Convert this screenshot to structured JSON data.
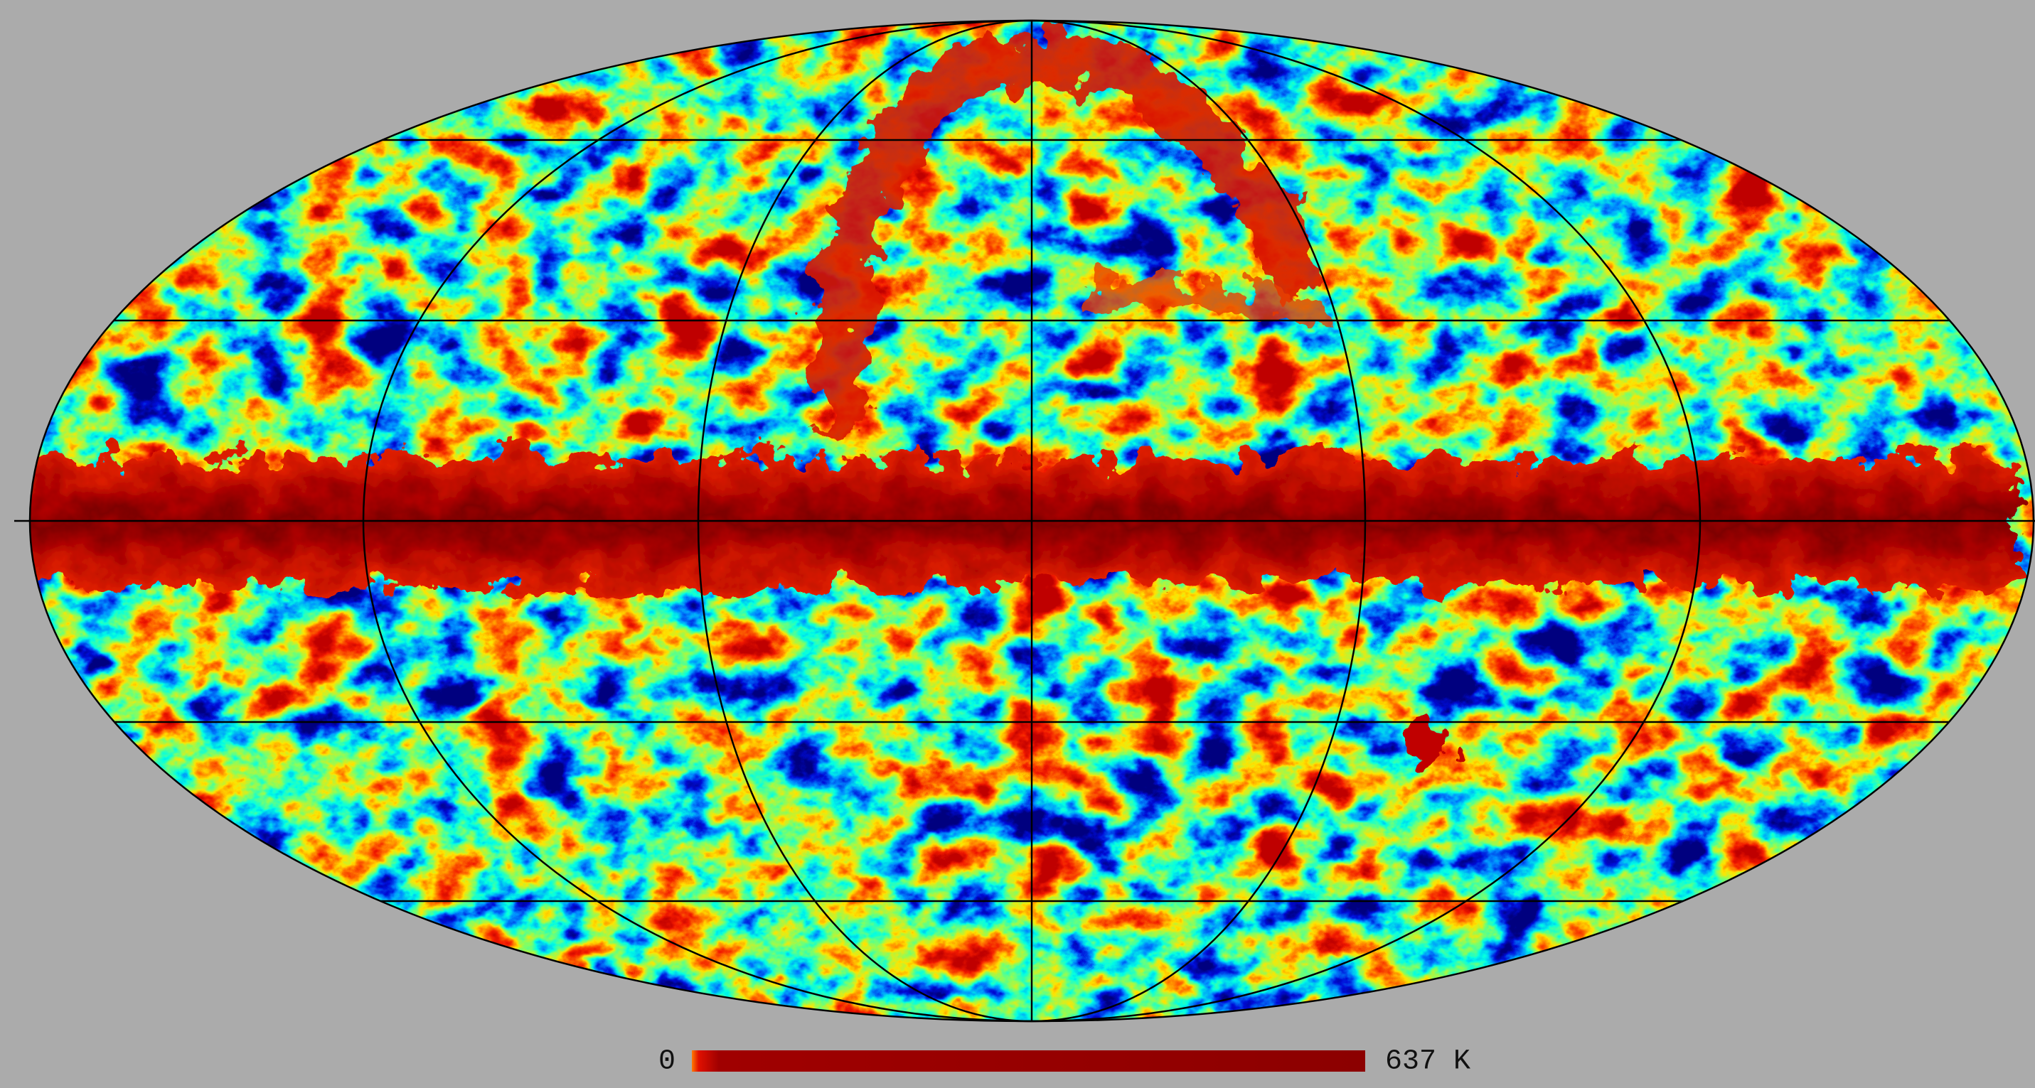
{
  "colorbar": {
    "min_label": "0",
    "max_label": "637 K"
  }
}
